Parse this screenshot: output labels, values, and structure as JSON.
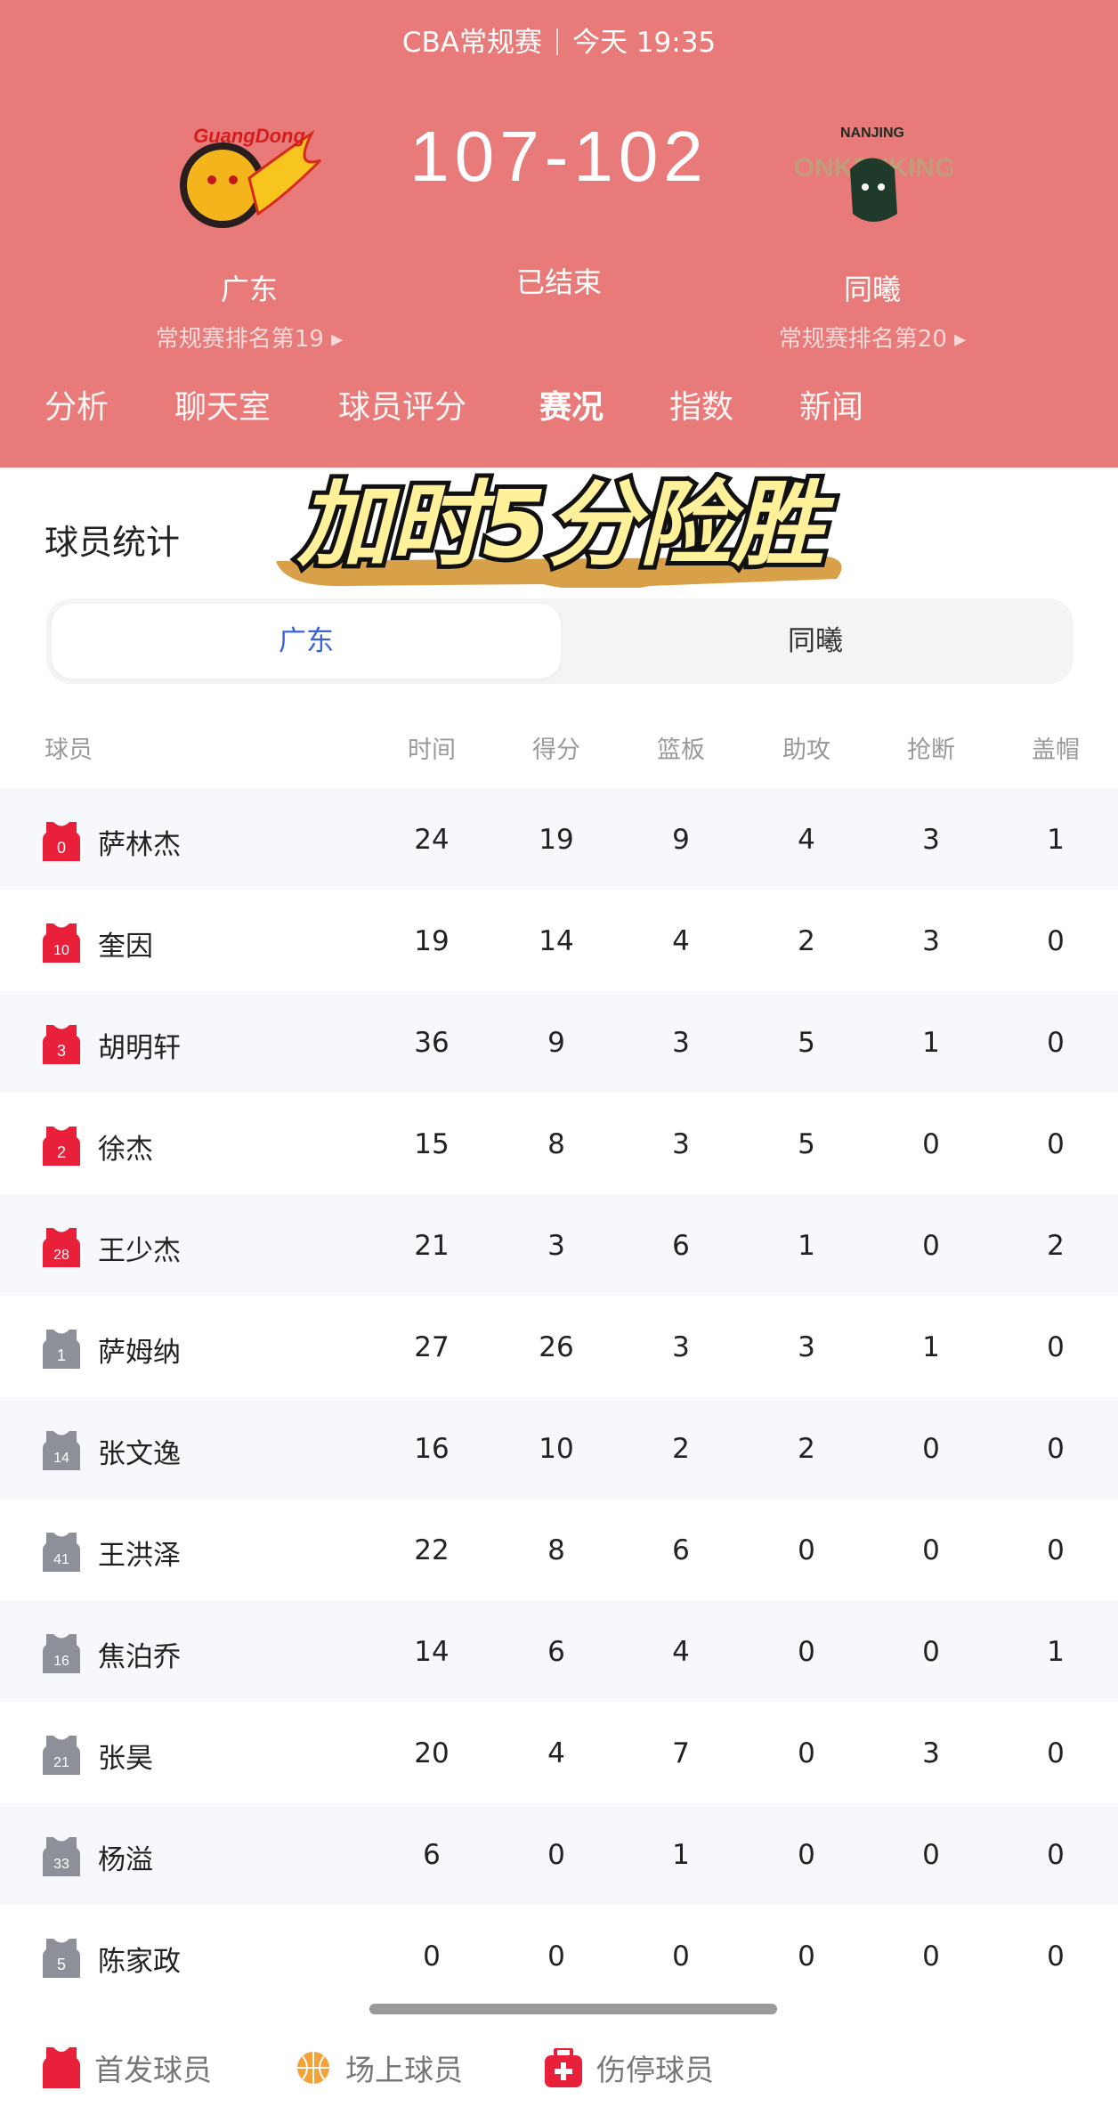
{
  "header": {
    "league": "CBA常规赛",
    "time": "今天 19:35",
    "score": "107-102",
    "status": "已结束",
    "home": {
      "name": "广东",
      "rank": "常规赛排名第19",
      "logo_text": "GuangDong"
    },
    "away": {
      "name": "同曦",
      "rank": "常规赛排名第20",
      "logo_text": "NANJING MONKEYKINGS"
    },
    "tabs": [
      {
        "label": "分析"
      },
      {
        "label": "聊天室"
      },
      {
        "label": "球员评分"
      },
      {
        "label": "赛况",
        "active": true
      },
      {
        "label": "指数"
      },
      {
        "label": "新闻"
      }
    ]
  },
  "section_title": "球员统计",
  "overlay_caption": "加时5分险胜",
  "team_toggle": {
    "options": [
      "广东",
      "同曦"
    ],
    "selected": "广东"
  },
  "columns": [
    "球员",
    "时间",
    "得分",
    "篮板",
    "助攻",
    "抢断",
    "盖帽"
  ],
  "players": [
    {
      "num": "0",
      "name": "萨林杰",
      "starter": true,
      "stats": [
        "24",
        "19",
        "9",
        "4",
        "3",
        "1"
      ]
    },
    {
      "num": "10",
      "name": "奎因",
      "starter": true,
      "stats": [
        "19",
        "14",
        "4",
        "2",
        "3",
        "0"
      ]
    },
    {
      "num": "3",
      "name": "胡明轩",
      "starter": true,
      "stats": [
        "36",
        "9",
        "3",
        "5",
        "1",
        "0"
      ]
    },
    {
      "num": "2",
      "name": "徐杰",
      "starter": true,
      "stats": [
        "15",
        "8",
        "3",
        "5",
        "0",
        "0"
      ]
    },
    {
      "num": "28",
      "name": "王少杰",
      "starter": true,
      "stats": [
        "21",
        "3",
        "6",
        "1",
        "0",
        "2"
      ]
    },
    {
      "num": "1",
      "name": "萨姆纳",
      "starter": false,
      "stats": [
        "27",
        "26",
        "3",
        "3",
        "1",
        "0"
      ]
    },
    {
      "num": "14",
      "name": "张文逸",
      "starter": false,
      "stats": [
        "16",
        "10",
        "2",
        "2",
        "0",
        "0"
      ]
    },
    {
      "num": "41",
      "name": "王洪泽",
      "starter": false,
      "stats": [
        "22",
        "8",
        "6",
        "0",
        "0",
        "0"
      ]
    },
    {
      "num": "16",
      "name": "焦泊乔",
      "starter": false,
      "stats": [
        "14",
        "6",
        "4",
        "0",
        "0",
        "1"
      ]
    },
    {
      "num": "21",
      "name": "张昊",
      "starter": false,
      "stats": [
        "20",
        "4",
        "7",
        "0",
        "3",
        "0"
      ]
    },
    {
      "num": "33",
      "name": "杨溢",
      "starter": false,
      "stats": [
        "6",
        "0",
        "1",
        "0",
        "0",
        "0"
      ]
    },
    {
      "num": "5",
      "name": "陈家政",
      "starter": false,
      "stats": [
        "0",
        "0",
        "0",
        "0",
        "0",
        "0"
      ]
    }
  ],
  "legend": [
    {
      "label": "首发球员",
      "icon": "red-jersey-icon"
    },
    {
      "label": "场上球员",
      "icon": "basketball-icon"
    },
    {
      "label": "伤停球员",
      "icon": "medical-kit-icon"
    }
  ],
  "colors": {
    "header_bg": "#e87b79",
    "starter": "#e8203a",
    "bench": "#8e9099",
    "accent": "#3d63d6",
    "basketball": "#f5a13a"
  }
}
